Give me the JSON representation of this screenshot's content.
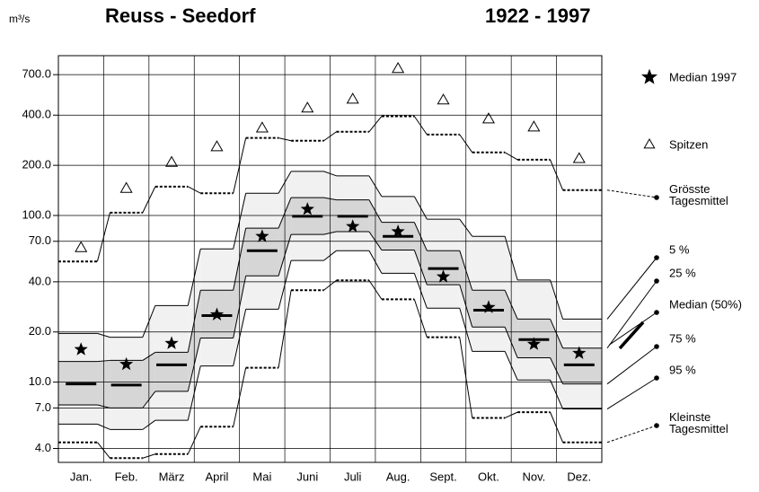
{
  "chart_data": {
    "type": "percentile_band",
    "title": "Reuss - Seedorf",
    "subtitle": "1922 - 1997",
    "y_label": "m³/s",
    "log_scale": true,
    "grid": true,
    "categories": [
      "Jan.",
      "Feb.",
      "März",
      "April",
      "Mai",
      "Juni",
      "Juli",
      "Aug.",
      "Sept.",
      "Okt.",
      "Nov.",
      "Dez."
    ],
    "ylim": [
      3.3,
      910
    ],
    "yticks": [
      {
        "value": 4,
        "label": "4.0"
      },
      {
        "value": 7,
        "label": "7.0"
      },
      {
        "value": 10,
        "label": "10.0"
      },
      {
        "value": 20,
        "label": "20.0"
      },
      {
        "value": 40,
        "label": "40.0"
      },
      {
        "value": 70,
        "label": "70.0"
      },
      {
        "value": 100,
        "label": "100.0"
      },
      {
        "value": 200,
        "label": "200.0"
      },
      {
        "value": 400,
        "label": "400.0"
      },
      {
        "value": 700,
        "label": "700.0"
      }
    ],
    "outer_band_color": "#f1f1f1",
    "inner_band_color": "#d6d6d6",
    "series": [
      {
        "name": "Median 1997",
        "marker": "star",
        "color": "#000000",
        "values": [
          15.7,
          12.8,
          17.1,
          25.4,
          75,
          109,
          86,
          80,
          42.9,
          28.1,
          16.9,
          14.9
        ]
      },
      {
        "name": "Spitzen",
        "marker": "triangle",
        "color": "#000000",
        "values": [
          64,
          145,
          208,
          258,
          334,
          440,
          498,
          760,
          492,
          379,
          339,
          219
        ]
      },
      {
        "name": "Grösste Tagesmittel",
        "marker": "dashed",
        "color": "#000000",
        "values": [
          53,
          104,
          149,
          136,
          292,
          281,
          318,
          394,
          306,
          239,
          216,
          142
        ]
      },
      {
        "name": "5 %",
        "marker": "line",
        "color": "#000000",
        "values": [
          19.6,
          18.6,
          28.8,
          63,
          136,
          184,
          173,
          130,
          95,
          75,
          41,
          23.9
        ]
      },
      {
        "name": "25 %",
        "marker": "line",
        "color": "#000000",
        "values": [
          13.3,
          13.5,
          15.1,
          35.6,
          84,
          128,
          124,
          91,
          61.5,
          35.6,
          23.9,
          16
        ]
      },
      {
        "name": "Median (50%)",
        "marker": "bar",
        "color": "#000000",
        "values": [
          9.75,
          9.6,
          12.7,
          25.1,
          61.5,
          99,
          99,
          75,
          48,
          27,
          18,
          12.7
        ]
      },
      {
        "name": "75 %",
        "marker": "line",
        "color": "#000000",
        "values": [
          7.3,
          7.0,
          8.8,
          18.4,
          43.4,
          77,
          80,
          62,
          38.4,
          21.4,
          14,
          9.75
        ]
      },
      {
        "name": "95 %",
        "marker": "line",
        "color": "#000000",
        "values": [
          5.6,
          5.2,
          5.9,
          12.5,
          27.4,
          53.7,
          61.5,
          45,
          27.8,
          15.3,
          10.3,
          6.9
        ]
      },
      {
        "name": "Kleinste Tagesmittel",
        "marker": "dashed",
        "color": "#000000",
        "values": [
          4.35,
          3.5,
          3.7,
          5.4,
          12.2,
          35.6,
          40.8,
          31.4,
          18.6,
          6.1,
          6.6,
          4.35
        ]
      }
    ]
  }
}
